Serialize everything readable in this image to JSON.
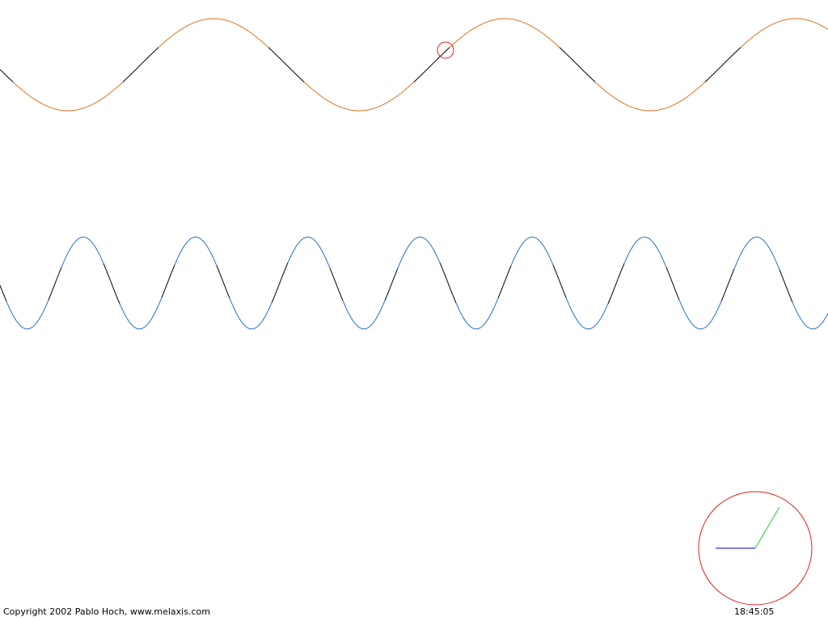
{
  "footer": {
    "copyright": "Copyright 2002 Pablo Hoch, www.melaxis.com",
    "time": "18:45:05"
  },
  "colors": {
    "background": "#ffffff",
    "wave_slow": "#e07020",
    "wave_fast": "#2070d0",
    "wave_dark": "#000000",
    "marker": "#e02020",
    "clock_face": "#e02020",
    "clock_hour_hand": "#0000c0",
    "clock_minute_hand": "#20d020"
  },
  "icons": {
    "wave_marker": "circle-outline",
    "clock": "analog-clock"
  }
}
